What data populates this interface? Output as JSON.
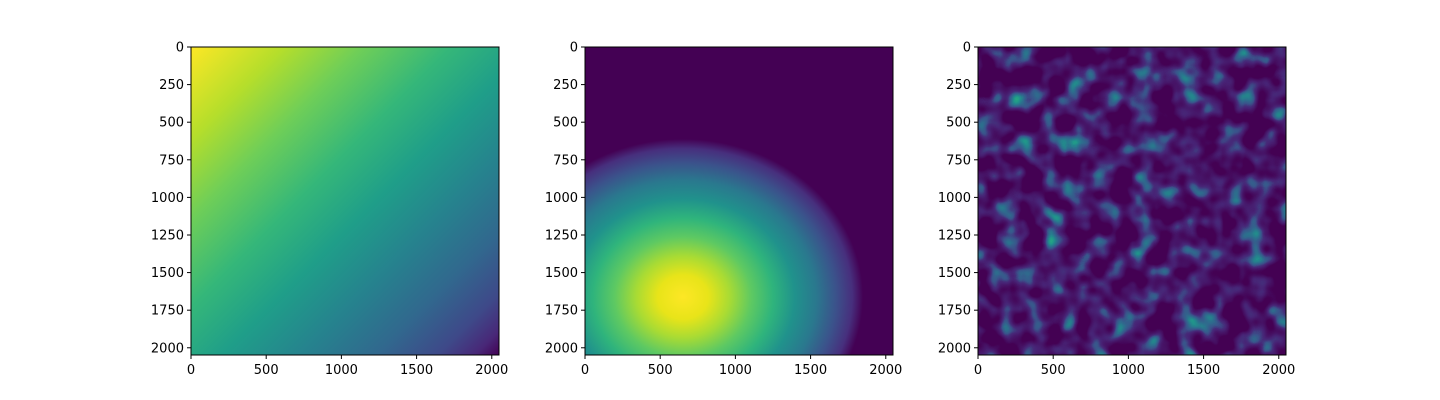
{
  "chart_data": [
    {
      "type": "heatmap",
      "pattern": "linear-gradient",
      "colormap": "viridis",
      "title": "",
      "xlabel": "",
      "ylabel": "",
      "xlim": [
        0,
        2048
      ],
      "ylim": [
        2048,
        0
      ],
      "x_ticks": [
        0,
        500,
        1000,
        1500,
        2000
      ],
      "y_ticks": [
        0,
        250,
        500,
        750,
        1000,
        1250,
        1500,
        1750,
        2000
      ],
      "value_max_at": [
        0,
        0
      ],
      "value_min_at": [
        2048,
        2048
      ],
      "grid": false
    },
    {
      "type": "heatmap",
      "pattern": "gaussian-blob",
      "colormap": "viridis",
      "title": "",
      "xlabel": "",
      "ylabel": "",
      "xlim": [
        0,
        2048
      ],
      "ylim": [
        2048,
        0
      ],
      "x_ticks": [
        0,
        500,
        1000,
        1500,
        2000
      ],
      "y_ticks": [
        0,
        250,
        500,
        750,
        1000,
        1250,
        1500,
        1750,
        2000
      ],
      "peak_center": [
        650,
        1650
      ],
      "peak_spread": [
        560,
        500
      ],
      "grid": false
    },
    {
      "type": "heatmap",
      "pattern": "random-noise",
      "colormap": "viridis",
      "title": "",
      "xlabel": "",
      "ylabel": "",
      "xlim": [
        0,
        2048
      ],
      "ylim": [
        2048,
        0
      ],
      "x_ticks": [
        0,
        500,
        1000,
        1500,
        2000
      ],
      "y_ticks": [
        0,
        250,
        500,
        750,
        1000,
        1250,
        1500,
        1750,
        2000
      ],
      "grid": false
    }
  ]
}
